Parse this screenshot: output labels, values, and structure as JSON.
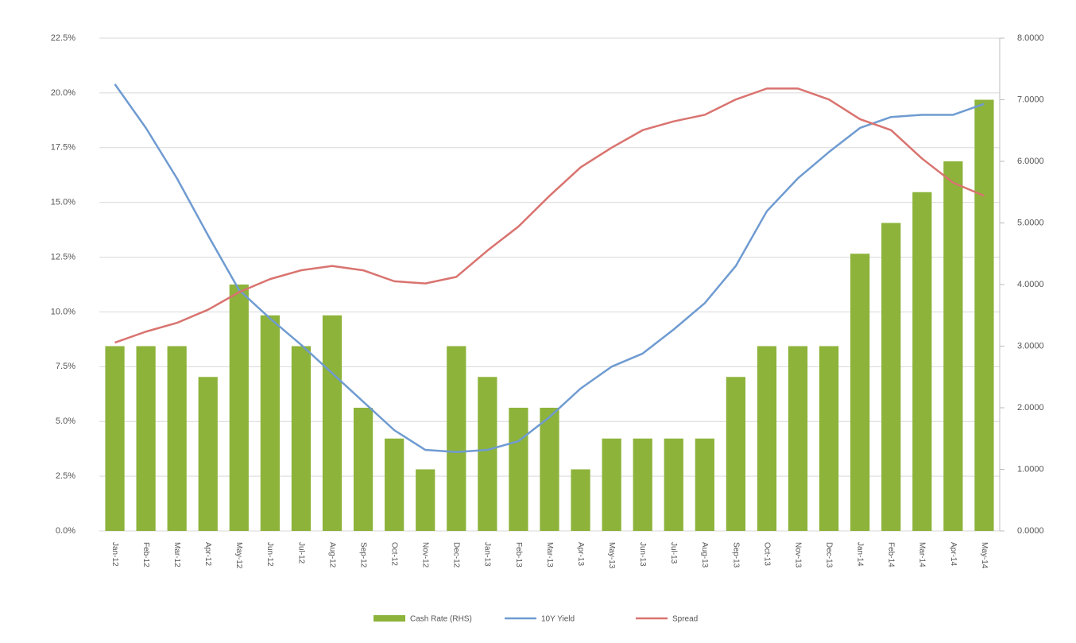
{
  "chart_data": {
    "type": "bar-line",
    "categories": [
      "Jan-12",
      "Feb-12",
      "Mar-12",
      "Apr-12",
      "May-12",
      "Jun-12",
      "Jul-12",
      "Aug-12",
      "Sep-12",
      "Oct-12",
      "Nov-12",
      "Dec-12",
      "Jan-13",
      "Feb-13",
      "Mar-13",
      "Apr-13",
      "May-13",
      "Jun-13",
      "Jul-13",
      "Aug-13",
      "Sep-13",
      "Oct-13",
      "Nov-13",
      "Dec-13",
      "Jan-14",
      "Feb-14",
      "Mar-14",
      "Apr-14",
      "May-14"
    ],
    "series": [
      {
        "name": "Cash Rate (RHS)",
        "type": "bar",
        "axis": "y2",
        "color": "#8db33a",
        "values": [
          3.0,
          3.0,
          3.0,
          2.5,
          4.0,
          3.5,
          3.0,
          3.5,
          2.0,
          1.5,
          1.0,
          3.0,
          2.5,
          2.0,
          2.0,
          1.0,
          1.5,
          1.5,
          1.5,
          1.5,
          2.5,
          3.0,
          3.0,
          3.0,
          4.5,
          5.0,
          5.5,
          6.0,
          7.0
        ]
      },
      {
        "name": "10Y Yield",
        "type": "line",
        "axis": "y",
        "color": "#6f9bd1",
        "values": [
          20.4,
          18.4,
          16.1,
          13.5,
          11.0,
          9.7,
          8.5,
          7.2,
          5.9,
          4.6,
          3.7,
          3.6,
          3.7,
          4.1,
          5.2,
          6.5,
          7.5,
          8.1,
          9.2,
          10.4,
          12.1,
          14.6,
          16.1,
          17.3,
          18.4,
          18.9,
          19.0,
          19.0,
          19.5
        ]
      },
      {
        "name": "Spread",
        "type": "line",
        "axis": "y",
        "color": "#d9736f",
        "values": [
          8.6,
          9.1,
          9.5,
          10.1,
          10.9,
          11.5,
          11.9,
          12.1,
          11.9,
          11.4,
          11.3,
          11.6,
          12.8,
          13.9,
          15.3,
          16.6,
          17.5,
          18.3,
          18.7,
          19.0,
          19.7,
          20.2,
          20.2,
          19.7,
          18.8,
          18.3,
          17.0,
          15.9,
          15.3
        ]
      }
    ],
    "ylim": [
      0,
      22.5
    ],
    "yticks": [
      {
        "value": 0,
        "label": "0.0%"
      },
      {
        "value": 2.5,
        "label": "2.5%"
      },
      {
        "value": 5,
        "label": "5.0%"
      },
      {
        "value": 7.5,
        "label": "7.5%"
      },
      {
        "value": 10,
        "label": "10.0%"
      },
      {
        "value": 12.5,
        "label": "12.5%"
      },
      {
        "value": 15,
        "label": "15.0%"
      },
      {
        "value": 17.5,
        "label": "17.5%"
      },
      {
        "value": 20,
        "label": "20.0%"
      },
      {
        "value": 22.5,
        "label": "22.5%"
      }
    ],
    "y2lim": [
      0,
      8
    ],
    "y2ticks": [
      {
        "value": 0,
        "label": "0.0000"
      },
      {
        "value": 1,
        "label": "1.0000"
      },
      {
        "value": 2,
        "label": "2.0000"
      },
      {
        "value": 3,
        "label": "3.0000"
      },
      {
        "value": 4,
        "label": "4.0000"
      },
      {
        "value": 5,
        "label": "5.0000"
      },
      {
        "value": 6,
        "label": "6.0000"
      },
      {
        "value": 7,
        "label": "7.0000"
      },
      {
        "value": 8,
        "label": "8.0000"
      }
    ],
    "grid": true
  }
}
